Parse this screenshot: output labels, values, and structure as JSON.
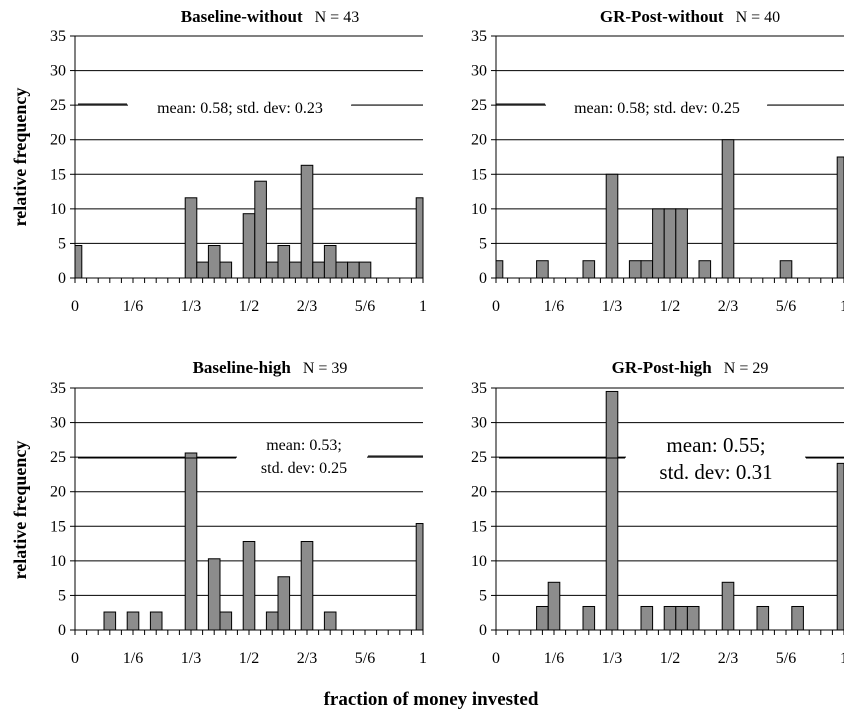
{
  "figure": {
    "ylabel": "relative frequency",
    "xlabel": "fraction of money invested"
  },
  "chart_data": [
    {
      "type": "bar",
      "title": "Baseline-without",
      "n_label": "N = 43",
      "annotation": [
        "mean: 0.58; std. dev: 0.23"
      ],
      "annotation_size": "normal",
      "ylim": [
        0,
        35
      ],
      "yticks": [
        0,
        5,
        10,
        15,
        20,
        25,
        30,
        35
      ],
      "xtick_labels": [
        "0",
        "1/6",
        "1/3",
        "1/2",
        "2/3",
        "5/6",
        "1"
      ],
      "bar_color": "#8c8c8c",
      "grid": true,
      "bins": 31,
      "values": [
        4.7,
        0,
        0,
        0,
        0,
        0,
        0,
        0,
        0,
        0,
        11.6,
        2.3,
        4.7,
        2.3,
        0,
        9.3,
        14.0,
        2.3,
        4.7,
        2.3,
        16.3,
        2.3,
        4.7,
        2.3,
        2.3,
        2.3,
        0,
        0,
        0,
        0,
        11.6
      ]
    },
    {
      "type": "bar",
      "title": "GR-Post-without",
      "n_label": "N = 40",
      "annotation": [
        "mean: 0.58; std. dev: 0.25"
      ],
      "annotation_size": "normal",
      "ylim": [
        0,
        35
      ],
      "yticks": [
        0,
        5,
        10,
        15,
        20,
        25,
        30,
        35
      ],
      "xtick_labels": [
        "0",
        "1/6",
        "1/3",
        "1/2",
        "2/3",
        "5/6",
        "1"
      ],
      "bar_color": "#8c8c8c",
      "grid": true,
      "bins": 31,
      "values": [
        2.5,
        0,
        0,
        0,
        2.5,
        0,
        0,
        0,
        2.5,
        0,
        15,
        0,
        2.5,
        2.5,
        10,
        10,
        10,
        0,
        2.5,
        0,
        20,
        0,
        0,
        0,
        0,
        2.5,
        0,
        0,
        0,
        0,
        17.5
      ]
    },
    {
      "type": "bar",
      "title": "Baseline-high",
      "n_label": "N = 39",
      "annotation": [
        "mean: 0.53;",
        "std. dev: 0.25"
      ],
      "annotation_size": "normal",
      "ylim": [
        0,
        35
      ],
      "yticks": [
        0,
        5,
        10,
        15,
        20,
        25,
        30,
        35
      ],
      "xtick_labels": [
        "0",
        "1/6",
        "1/3",
        "1/2",
        "2/3",
        "5/6",
        "1"
      ],
      "bar_color": "#8c8c8c",
      "grid": true,
      "bins": 31,
      "values": [
        0,
        0,
        0,
        2.6,
        0,
        2.6,
        0,
        2.6,
        0,
        0,
        25.6,
        0,
        10.3,
        2.6,
        0,
        12.8,
        0,
        2.6,
        7.7,
        0,
        12.8,
        0,
        2.6,
        0,
        0,
        0,
        0,
        0,
        0,
        0,
        15.4
      ]
    },
    {
      "type": "bar",
      "title": "GR-Post-high",
      "n_label": "N = 29",
      "annotation": [
        "mean: 0.55;",
        "std. dev: 0.31"
      ],
      "annotation_size": "large",
      "ylim": [
        0,
        35
      ],
      "yticks": [
        0,
        5,
        10,
        15,
        20,
        25,
        30,
        35
      ],
      "xtick_labels": [
        "0",
        "1/6",
        "1/3",
        "1/2",
        "2/3",
        "5/6",
        "1"
      ],
      "bar_color": "#8c8c8c",
      "grid": true,
      "bins": 31,
      "values": [
        0,
        0,
        0,
        0,
        3.4,
        6.9,
        0,
        0,
        3.4,
        0,
        34.5,
        0,
        0,
        3.4,
        0,
        3.4,
        3.4,
        3.4,
        0,
        0,
        6.9,
        0,
        0,
        3.4,
        0,
        0,
        3.4,
        0,
        0,
        0,
        24.1
      ]
    }
  ]
}
